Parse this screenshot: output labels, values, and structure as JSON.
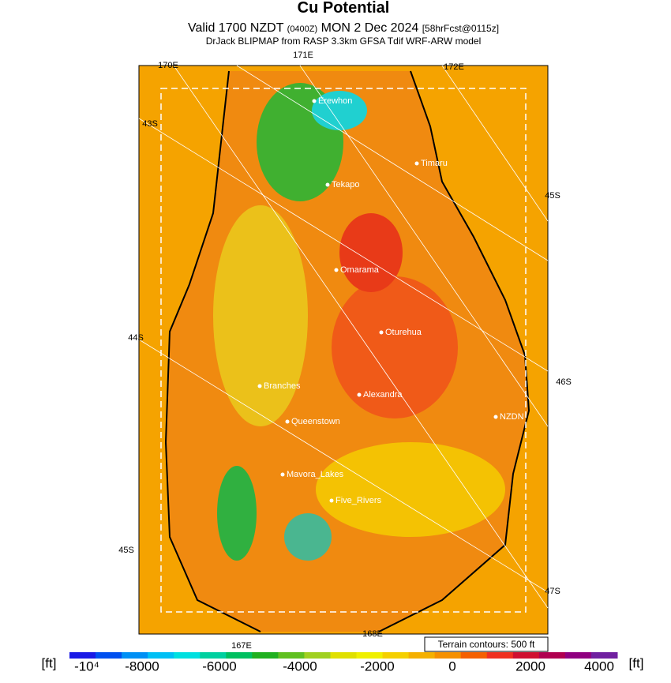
{
  "header": {
    "title": "Cu Potential",
    "valid": "Valid 1700 NZDT",
    "utc": "(0400Z)",
    "date": "MON 2 Dec 2024",
    "forecast": "[58hrFcst@0115z]",
    "subtitle": "DrJack BLIPMAP from RASP 3.3km GFSA Tdif WRF-ARW model"
  },
  "graticule": {
    "lon_labels": [
      "170E",
      "171E",
      "172E",
      "167E",
      "168E"
    ],
    "lat_labels": [
      "43S",
      "45S",
      "44S",
      "46S",
      "45S",
      "47S"
    ]
  },
  "places": [
    "Erewhon",
    "Tekapo",
    "Timaru",
    "Omarama",
    "Oturehua",
    "Branches",
    "Alexandra",
    "NZDN",
    "Queenstown",
    "Mavora_Lakes",
    "Five_Rivers"
  ],
  "terrain_note": "Terrain contours: 500 ft",
  "colorbar": {
    "unit_left": "[ft]",
    "unit_right": "[ft]",
    "labels": [
      "-10⁴",
      "-8000",
      "-6000",
      "-4000",
      "-2000",
      "0",
      "2000",
      "4000"
    ],
    "colors": [
      "#1a1ae6",
      "#0050f0",
      "#0090f5",
      "#00c0f5",
      "#00e0e0",
      "#00d0a0",
      "#00c060",
      "#20b020",
      "#60c020",
      "#a0d020",
      "#e0e000",
      "#f0f000",
      "#f5d000",
      "#f5b000",
      "#f59000",
      "#f56000",
      "#f03020",
      "#d01030",
      "#b00050",
      "#900080",
      "#7020a0"
    ]
  }
}
